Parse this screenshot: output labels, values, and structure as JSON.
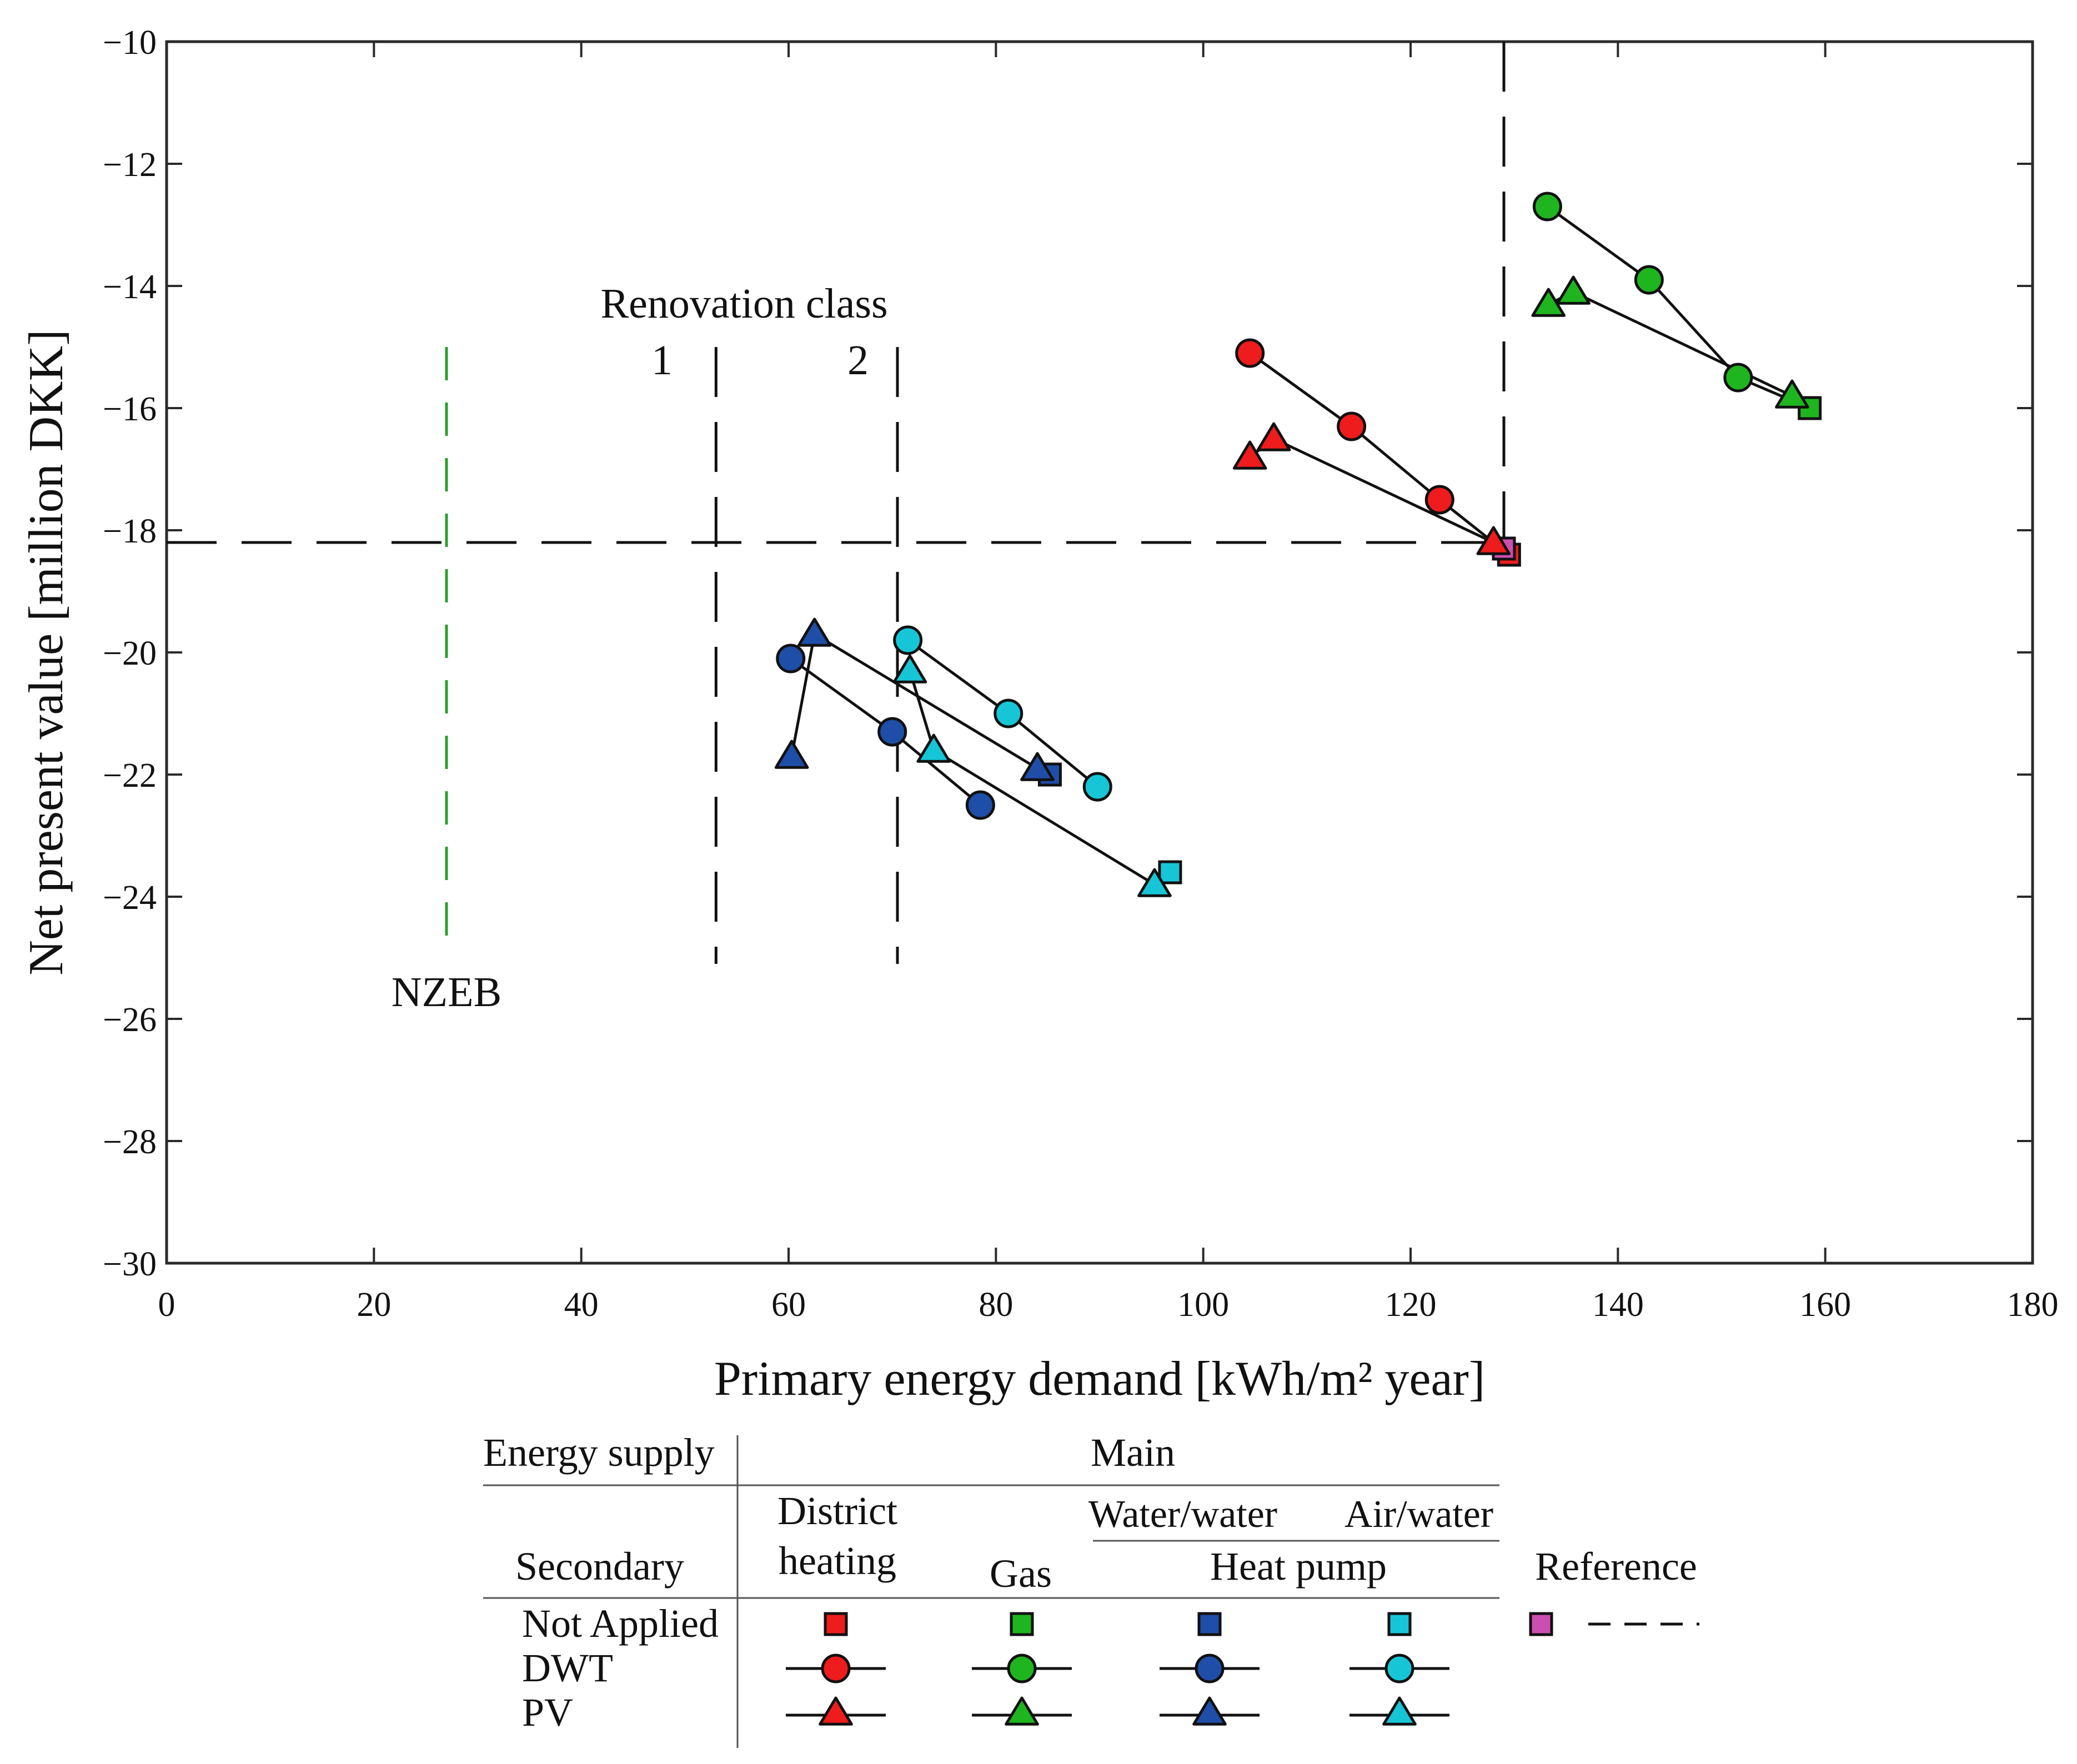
{
  "chart_data": {
    "type": "scatter",
    "title": "",
    "xlabel": "Primary energy demand [kWh/m² year]",
    "ylabel": "Net present value [million DKK]",
    "xlim": [
      0,
      180
    ],
    "ylim": [
      -30,
      -10
    ],
    "xticks": [
      0,
      20,
      40,
      60,
      80,
      100,
      120,
      140,
      160,
      180
    ],
    "yticks": [
      -30,
      -28,
      -26,
      -24,
      -22,
      -20,
      -18,
      -16,
      -14,
      -12,
      -10
    ],
    "xtick_labels": [
      "0",
      "20",
      "40",
      "60",
      "80",
      "100",
      "120",
      "140",
      "160",
      "180"
    ],
    "ytick_labels": [
      "−30",
      "−28",
      "−26",
      "−24",
      "−22",
      "−20",
      "−18",
      "−16",
      "−14",
      "−12",
      "−10"
    ],
    "colors": {
      "district_heating": "#ee1c1c",
      "gas": "#1fb51f",
      "water_water": "#1f4ea8",
      "air_water": "#17c6d6",
      "reference": "#cc4fb0",
      "nzeb": "#2aa02a",
      "line": "#111111"
    },
    "reference_line": {
      "x": 129,
      "y": -18.2
    },
    "nzeb": {
      "x": 27,
      "y_range": [
        -25,
        -15
      ],
      "label": "NZEB"
    },
    "renovation_class": {
      "label": "Renovation class",
      "classes": [
        {
          "name": "1",
          "x": 53
        },
        {
          "name": "2",
          "x": 70.5
        }
      ],
      "y_range": [
        -25.1,
        -15
      ]
    },
    "series": [
      {
        "name": "District heating – Not Applied",
        "supply": "district_heating",
        "marker": "square",
        "points": [
          {
            "x": 129.5,
            "y": -18.4
          }
        ]
      },
      {
        "name": "District heating – DWT",
        "supply": "district_heating",
        "marker": "circle",
        "points": [
          {
            "x": 104.5,
            "y": -15.1
          },
          {
            "x": 114.3,
            "y": -16.3
          },
          {
            "x": 122.8,
            "y": -17.5
          },
          {
            "x": 129.5,
            "y": -18.4
          }
        ]
      },
      {
        "name": "District heating – PV",
        "supply": "district_heating",
        "marker": "triangle",
        "points": [
          {
            "x": 104.5,
            "y": -16.8
          },
          {
            "x": 106.8,
            "y": -16.5
          },
          {
            "x": 128.0,
            "y": -18.2
          }
        ]
      },
      {
        "name": "Gas – Not Applied",
        "supply": "gas",
        "marker": "square",
        "points": [
          {
            "x": 158.5,
            "y": -16.0
          }
        ]
      },
      {
        "name": "Gas – DWT",
        "supply": "gas",
        "marker": "circle",
        "points": [
          {
            "x": 133.2,
            "y": -12.7
          },
          {
            "x": 143.0,
            "y": -13.9
          },
          {
            "x": 151.6,
            "y": -15.5
          },
          {
            "x": 158.5,
            "y": -16.0
          }
        ]
      },
      {
        "name": "Gas – PV",
        "supply": "gas",
        "marker": "triangle",
        "points": [
          {
            "x": 133.3,
            "y": -14.3
          },
          {
            "x": 135.7,
            "y": -14.1
          },
          {
            "x": 156.8,
            "y": -15.8
          }
        ]
      },
      {
        "name": "Water/water heat pump – Not Applied",
        "supply": "water_water",
        "marker": "square",
        "points": [
          {
            "x": 85.2,
            "y": -22.0
          }
        ]
      },
      {
        "name": "Water/water heat pump – DWT",
        "supply": "water_water",
        "marker": "circle",
        "points": [
          {
            "x": 60.2,
            "y": -20.1
          },
          {
            "x": 70.0,
            "y": -21.3
          },
          {
            "x": 78.5,
            "y": -22.5
          }
        ]
      },
      {
        "name": "Water/water heat pump – PV",
        "supply": "water_water",
        "marker": "triangle",
        "points": [
          {
            "x": 60.3,
            "y": -21.7
          },
          {
            "x": 62.5,
            "y": -19.7
          },
          {
            "x": 84.0,
            "y": -21.9
          }
        ]
      },
      {
        "name": "Air/water heat pump – Not Applied",
        "supply": "air_water",
        "marker": "square",
        "points": [
          {
            "x": 96.8,
            "y": -23.6
          }
        ]
      },
      {
        "name": "Air/water heat pump – DWT",
        "supply": "air_water",
        "marker": "circle",
        "points": [
          {
            "x": 71.5,
            "y": -19.8
          },
          {
            "x": 81.2,
            "y": -21.0
          },
          {
            "x": 89.8,
            "y": -22.2
          }
        ]
      },
      {
        "name": "Air/water heat pump – PV",
        "supply": "air_water",
        "marker": "triangle",
        "points": [
          {
            "x": 71.7,
            "y": -20.3
          },
          {
            "x": 74.0,
            "y": -21.6
          },
          {
            "x": 95.3,
            "y": -23.8
          }
        ]
      },
      {
        "name": "Reference",
        "supply": "reference",
        "marker": "square",
        "points": [
          {
            "x": 129.0,
            "y": -18.3
          }
        ]
      }
    ]
  },
  "legend": {
    "energy_supply_label": "Energy supply",
    "main_label": "Main",
    "secondary_label": "Secondary",
    "district_heating_line1": "District",
    "district_heating_line2": "heating",
    "gas_label": "Gas",
    "water_water_label": "Water/water",
    "air_water_label": "Air/water",
    "heat_pump_label": "Heat pump",
    "reference_label": "Reference",
    "rows": [
      "Not Applied",
      "DWT",
      "PV"
    ]
  }
}
